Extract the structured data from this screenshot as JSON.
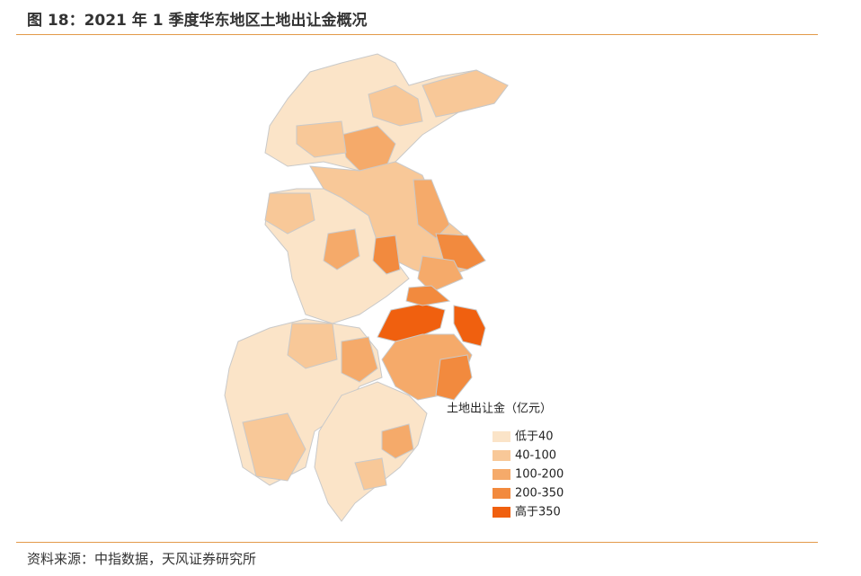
{
  "header": {
    "title": "图 18：2021 年 1 季度华东地区土地出让金概况"
  },
  "legend": {
    "title": "土地出让金（亿元）",
    "items": [
      {
        "label": "低于40",
        "color": "#fbe4c8"
      },
      {
        "label": "40-100",
        "color": "#f8c898"
      },
      {
        "label": "100-200",
        "color": "#f5aa6a"
      },
      {
        "label": "200-350",
        "color": "#f28a3e"
      },
      {
        "label": "高于350",
        "color": "#f0600f"
      }
    ]
  },
  "footer": {
    "source": "资料来源：中指数据，天风证券研究所"
  }
}
